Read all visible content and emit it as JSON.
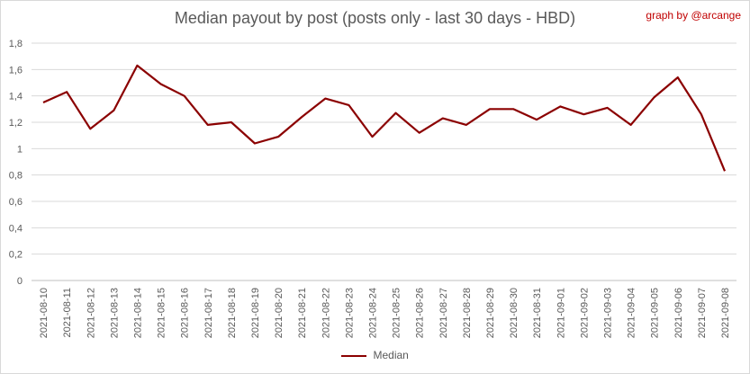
{
  "title": "Median payout by post (posts only - last 30 days - HBD)",
  "credit": "graph by @arcange",
  "chart_data": {
    "type": "line",
    "title": "Median payout by post (posts only - last 30 days - HBD)",
    "xlabel": "",
    "ylabel": "",
    "ylim": [
      0,
      1.8
    ],
    "yticks": [
      "0",
      "0,2",
      "0,4",
      "0,6",
      "0,8",
      "1",
      "1,2",
      "1,4",
      "1,6",
      "1,8"
    ],
    "grid": true,
    "legend_position": "bottom",
    "color": "#8b0000",
    "categories": [
      "2021-08-10",
      "2021-08-11",
      "2021-08-12",
      "2021-08-13",
      "2021-08-14",
      "2021-08-15",
      "2021-08-16",
      "2021-08-17",
      "2021-08-18",
      "2021-08-19",
      "2021-08-20",
      "2021-08-21",
      "2021-08-22",
      "2021-08-23",
      "2021-08-24",
      "2021-08-25",
      "2021-08-26",
      "2021-08-27",
      "2021-08-28",
      "2021-08-29",
      "2021-08-30",
      "2021-08-31",
      "2021-09-01",
      "2021-09-02",
      "2021-09-03",
      "2021-09-04",
      "2021-09-05",
      "2021-09-06",
      "2021-09-07",
      "2021-09-08"
    ],
    "series": [
      {
        "name": "Median",
        "values": [
          1.35,
          1.43,
          1.15,
          1.29,
          1.63,
          1.49,
          1.4,
          1.18,
          1.2,
          1.04,
          1.09,
          1.24,
          1.38,
          1.33,
          1.09,
          1.27,
          1.12,
          1.23,
          1.18,
          1.3,
          1.3,
          1.22,
          1.32,
          1.26,
          1.31,
          1.18,
          1.39,
          1.54,
          1.26,
          0.83
        ]
      }
    ]
  }
}
